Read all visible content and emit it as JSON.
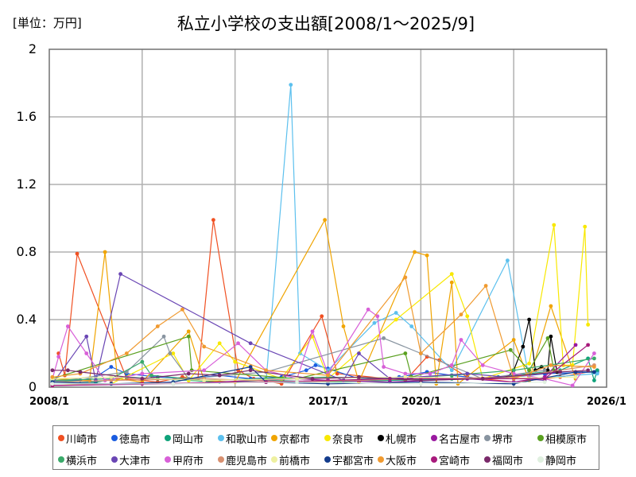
{
  "header": {
    "unit_label": "[単位：万円]",
    "title": "私立小学校の支出額[2008/1～2025/9]"
  },
  "axes": {
    "y_ticks": [
      "2",
      "1.6",
      "1.2",
      "0.8",
      "0.4",
      "0"
    ],
    "x_ticks": [
      "2008/1",
      "2011/1",
      "2014/1",
      "2017/1",
      "2020/1",
      "2023/1",
      "2026/1"
    ]
  },
  "legend": [
    {
      "name": "川崎市",
      "color": "#f05022"
    },
    {
      "name": "徳島市",
      "color": "#1a5ce0"
    },
    {
      "name": "岡山市",
      "color": "#0fa27a"
    },
    {
      "name": "和歌山市",
      "color": "#5cc0ee"
    },
    {
      "name": "京都市",
      "color": "#f0a400"
    },
    {
      "name": "奈良市",
      "color": "#f8e800"
    },
    {
      "name": "札幌市",
      "color": "#000000"
    },
    {
      "name": "名古屋市",
      "color": "#9a1aa0"
    },
    {
      "name": "堺市",
      "color": "#8894a0"
    },
    {
      "name": "相模原市",
      "color": "#5aa020"
    },
    {
      "name": "横浜市",
      "color": "#3aaa6a"
    },
    {
      "name": "大津市",
      "color": "#6a46b4"
    },
    {
      "name": "甲府市",
      "color": "#d860d8"
    },
    {
      "name": "鹿児島市",
      "color": "#d89070"
    },
    {
      "name": "前橋市",
      "color": "#eef0a0"
    },
    {
      "name": "宇都宮市",
      "color": "#143c8c"
    },
    {
      "name": "大阪市",
      "color": "#f09a30"
    },
    {
      "name": "宮崎市",
      "color": "#a81a7c"
    },
    {
      "name": "福岡市",
      "color": "#7a2a6a"
    },
    {
      "name": "静岡市",
      "color": "#e0f0e0"
    }
  ],
  "chart_data": {
    "type": "line",
    "title": "私立小学校の支出額[2008/1～2025/9]",
    "xlabel": "",
    "ylabel": "[単位：万円]",
    "ylim": [
      0,
      2
    ],
    "xlim": [
      "2008/1",
      "2026/1"
    ],
    "grid": true,
    "legend_position": "bottom",
    "x_tick_labels": [
      "2008/1",
      "2011/1",
      "2014/1",
      "2017/1",
      "2020/1",
      "2023/1",
      "2026/1"
    ],
    "y_tick_labels": [
      "0",
      "0.4",
      "0.8",
      "1.2",
      "1.6",
      "2"
    ],
    "series": [
      {
        "name": "川崎市",
        "points": [
          [
            2008.3,
            0.2
          ],
          [
            2008.5,
            0.07
          ],
          [
            2008.9,
            0.79
          ],
          [
            2010.5,
            0.05
          ],
          [
            2011.5,
            0.03
          ],
          [
            2012.3,
            0.06
          ],
          [
            2012.8,
            0.05
          ],
          [
            2013.3,
            0.99
          ],
          [
            2014.1,
            0.1
          ],
          [
            2014.6,
            0.05
          ],
          [
            2015.5,
            0.02
          ],
          [
            2016.8,
            0.42
          ],
          [
            2017.3,
            0.08
          ],
          [
            2019.5,
            0.04
          ],
          [
            2020.2,
            0.18
          ],
          [
            2020.6,
            0.16
          ],
          [
            2021.5,
            0.06
          ],
          [
            2023.0,
            0.03
          ],
          [
            2024.5,
            0.06
          ],
          [
            2025.7,
            0.1
          ]
        ]
      },
      {
        "name": "徳島市",
        "points": [
          [
            2008.1,
            0.03
          ],
          [
            2009.0,
            0.04
          ],
          [
            2009.5,
            0.06
          ],
          [
            2010.0,
            0.12
          ],
          [
            2010.5,
            0.08
          ],
          [
            2011.5,
            0.06
          ],
          [
            2012.5,
            0.05
          ],
          [
            2013.5,
            0.07
          ],
          [
            2014.5,
            0.05
          ],
          [
            2015.5,
            0.06
          ],
          [
            2016.3,
            0.1
          ],
          [
            2016.6,
            0.13
          ],
          [
            2017.0,
            0.11
          ],
          [
            2018.0,
            0.05
          ],
          [
            2019.3,
            0.06
          ],
          [
            2020.2,
            0.09
          ],
          [
            2021.0,
            0.07
          ],
          [
            2022.0,
            0.05
          ],
          [
            2023.0,
            0.06
          ],
          [
            2024.0,
            0.08
          ],
          [
            2025.7,
            0.09
          ]
        ]
      },
      {
        "name": "岡山市",
        "points": [
          [
            2008.1,
            0.04
          ],
          [
            2009.5,
            0.03
          ],
          [
            2010.5,
            0.06
          ],
          [
            2011.5,
            0.05
          ],
          [
            2012.5,
            0.04
          ],
          [
            2013.5,
            0.03
          ],
          [
            2015.0,
            0.04
          ],
          [
            2017.0,
            0.03
          ],
          [
            2019.0,
            0.04
          ],
          [
            2021.0,
            0.05
          ],
          [
            2022.5,
            0.06
          ],
          [
            2023.5,
            0.08
          ],
          [
            2024.5,
            0.1
          ],
          [
            2025.4,
            0.17
          ],
          [
            2025.6,
            0.04
          ],
          [
            2025.7,
            0.1
          ]
        ]
      },
      {
        "name": "和歌山市",
        "points": [
          [
            2008.1,
            0.02
          ],
          [
            2012.0,
            0.02
          ],
          [
            2015.0,
            0.03
          ],
          [
            2015.8,
            1.79
          ],
          [
            2016.1,
            0.2
          ],
          [
            2017.0,
            0.1
          ],
          [
            2018.5,
            0.38
          ],
          [
            2019.2,
            0.44
          ],
          [
            2019.7,
            0.36
          ],
          [
            2021.0,
            0.1
          ],
          [
            2022.8,
            0.75
          ],
          [
            2023.5,
            0.05
          ],
          [
            2025.7,
            0.08
          ]
        ]
      },
      {
        "name": "京都市",
        "points": [
          [
            2008.1,
            0.05
          ],
          [
            2009.3,
            0.04
          ],
          [
            2009.8,
            0.8
          ],
          [
            2010.2,
            0.05
          ],
          [
            2011.0,
            0.03
          ],
          [
            2012.5,
            0.33
          ],
          [
            2013.0,
            0.04
          ],
          [
            2014.0,
            0.03
          ],
          [
            2016.9,
            0.99
          ],
          [
            2017.5,
            0.36
          ],
          [
            2018.0,
            0.03
          ],
          [
            2019.8,
            0.8
          ],
          [
            2020.2,
            0.78
          ],
          [
            2020.5,
            0.02
          ],
          [
            2021.0,
            0.62
          ],
          [
            2021.2,
            0.02
          ],
          [
            2023.0,
            0.28
          ],
          [
            2023.5,
            0.04
          ],
          [
            2024.2,
            0.48
          ],
          [
            2025.0,
            0.05
          ]
        ]
      },
      {
        "name": "奈良市",
        "points": [
          [
            2008.1,
            0.01
          ],
          [
            2010.0,
            0.02
          ],
          [
            2012.0,
            0.2
          ],
          [
            2012.5,
            0.04
          ],
          [
            2013.5,
            0.26
          ],
          [
            2014.0,
            0.15
          ],
          [
            2015.5,
            0.05
          ],
          [
            2016.5,
            0.3
          ],
          [
            2017.0,
            0.05
          ],
          [
            2019.2,
            0.4
          ],
          [
            2021.0,
            0.67
          ],
          [
            2021.5,
            0.42
          ],
          [
            2022.0,
            0.05
          ],
          [
            2023.5,
            0.14
          ],
          [
            2024.3,
            0.96
          ],
          [
            2024.6,
            0.13
          ],
          [
            2024.9,
            0.13
          ],
          [
            2025.3,
            0.95
          ],
          [
            2025.4,
            0.37
          ]
        ]
      },
      {
        "name": "札幌市",
        "points": [
          [
            2022.8,
            0.06
          ],
          [
            2023.0,
            0.1
          ],
          [
            2023.3,
            0.24
          ],
          [
            2023.5,
            0.4
          ],
          [
            2023.7,
            0.1
          ],
          [
            2023.9,
            0.12
          ],
          [
            2024.1,
            0.1
          ],
          [
            2024.2,
            0.3
          ],
          [
            2024.4,
            0.09
          ]
        ]
      },
      {
        "name": "名古屋市",
        "points": [
          [
            2008.1,
            0.01
          ],
          [
            2012.0,
            0.02
          ],
          [
            2016.0,
            0.05
          ],
          [
            2017.0,
            0.04
          ],
          [
            2019.0,
            0.03
          ],
          [
            2021.5,
            0.05
          ],
          [
            2023.0,
            0.03
          ],
          [
            2024.0,
            0.06
          ],
          [
            2025.0,
            0.25
          ]
        ]
      },
      {
        "name": "堺市",
        "points": [
          [
            2008.1,
            0.03
          ],
          [
            2010.5,
            0.09
          ],
          [
            2011.7,
            0.3
          ],
          [
            2011.9,
            0.2
          ],
          [
            2012.5,
            0.05
          ],
          [
            2015.0,
            0.09
          ],
          [
            2018.8,
            0.29
          ],
          [
            2020.0,
            0.2
          ],
          [
            2022.0,
            0.05
          ],
          [
            2024.0,
            0.1
          ]
        ]
      },
      {
        "name": "相模原市",
        "points": [
          [
            2008.1,
            0.05
          ],
          [
            2012.5,
            0.3
          ],
          [
            2012.6,
            0.1
          ],
          [
            2016.0,
            0.05
          ],
          [
            2019.5,
            0.2
          ],
          [
            2019.7,
            0.06
          ],
          [
            2022.9,
            0.22
          ],
          [
            2023.5,
            0.1
          ],
          [
            2024.1,
            0.29
          ],
          [
            2024.3,
            0.1
          ]
        ]
      },
      {
        "name": "横浜市",
        "points": [
          [
            2008.1,
            0.04
          ],
          [
            2010.0,
            0.05
          ],
          [
            2011.0,
            0.15
          ],
          [
            2011.3,
            0.07
          ],
          [
            2013.0,
            0.04
          ],
          [
            2015.0,
            0.05
          ],
          [
            2017.0,
            0.06
          ],
          [
            2019.0,
            0.05
          ],
          [
            2021.0,
            0.07
          ],
          [
            2023.0,
            0.1
          ],
          [
            2025.6,
            0.17
          ]
        ]
      },
      {
        "name": "大津市",
        "points": [
          [
            2008.1,
            0.02
          ],
          [
            2009.2,
            0.3
          ],
          [
            2009.5,
            0.04
          ],
          [
            2010.3,
            0.67
          ],
          [
            2014.5,
            0.26
          ],
          [
            2017.5,
            0.04
          ],
          [
            2018.0,
            0.2
          ],
          [
            2019.0,
            0.05
          ],
          [
            2021.5,
            0.08
          ],
          [
            2024.0,
            0.04
          ]
        ]
      },
      {
        "name": "甲府市",
        "points": [
          [
            2008.1,
            0.05
          ],
          [
            2008.3,
            0.18
          ],
          [
            2008.6,
            0.36
          ],
          [
            2009.2,
            0.2
          ],
          [
            2009.8,
            0.04
          ],
          [
            2011.0,
            0.08
          ],
          [
            2013.0,
            0.1
          ],
          [
            2014.1,
            0.26
          ],
          [
            2015.0,
            0.1
          ],
          [
            2016.0,
            0.05
          ],
          [
            2016.5,
            0.33
          ],
          [
            2017.0,
            0.08
          ],
          [
            2018.3,
            0.46
          ],
          [
            2018.6,
            0.42
          ],
          [
            2018.8,
            0.12
          ],
          [
            2019.5,
            0.08
          ],
          [
            2020.3,
            0.08
          ],
          [
            2021.0,
            0.13
          ],
          [
            2021.3,
            0.28
          ],
          [
            2022.0,
            0.13
          ],
          [
            2023.0,
            0.08
          ],
          [
            2024.0,
            0.05
          ],
          [
            2024.9,
            0.01
          ],
          [
            2025.6,
            0.2
          ]
        ]
      },
      {
        "name": "鹿児島市",
        "points": [
          [
            2008.1,
            0.03
          ],
          [
            2010.0,
            0.04
          ],
          [
            2013.0,
            0.05
          ],
          [
            2016.0,
            0.03
          ],
          [
            2020.0,
            0.05
          ],
          [
            2023.0,
            0.06
          ],
          [
            2025.6,
            0.13
          ]
        ]
      },
      {
        "name": "前橋市",
        "points": [
          [
            2008.1,
            0.05
          ],
          [
            2010.0,
            0.06
          ],
          [
            2013.0,
            0.04
          ],
          [
            2016.0,
            0.05
          ],
          [
            2019.5,
            0.06
          ],
          [
            2022.0,
            0.05
          ],
          [
            2025.0,
            0.06
          ]
        ]
      },
      {
        "name": "宇都宮市",
        "points": [
          [
            2008.1,
            0.03
          ],
          [
            2010.0,
            0.02
          ],
          [
            2012.0,
            0.03
          ],
          [
            2014.5,
            0.12
          ],
          [
            2015.0,
            0.03
          ],
          [
            2017.0,
            0.02
          ],
          [
            2020.0,
            0.03
          ],
          [
            2023.0,
            0.02
          ],
          [
            2025.0,
            0.09
          ],
          [
            2025.6,
            0.09
          ]
        ]
      },
      {
        "name": "大阪市",
        "points": [
          [
            2008.1,
            0.06
          ],
          [
            2009.0,
            0.08
          ],
          [
            2010.5,
            0.2
          ],
          [
            2011.5,
            0.36
          ],
          [
            2012.3,
            0.46
          ],
          [
            2013.0,
            0.24
          ],
          [
            2015.0,
            0.1
          ],
          [
            2017.0,
            0.07
          ],
          [
            2019.5,
            0.65
          ],
          [
            2020.0,
            0.2
          ],
          [
            2021.3,
            0.43
          ],
          [
            2022.1,
            0.6
          ],
          [
            2023.0,
            0.05
          ],
          [
            2024.2,
            0.13
          ],
          [
            2025.6,
            0.12
          ]
        ]
      },
      {
        "name": "宮崎市",
        "points": [
          [
            2008.1,
            0.01
          ],
          [
            2011.0,
            0.02
          ],
          [
            2015.0,
            0.03
          ],
          [
            2019.0,
            0.05
          ],
          [
            2022.0,
            0.05
          ],
          [
            2024.0,
            0.05
          ],
          [
            2025.4,
            0.25
          ]
        ]
      },
      {
        "name": "福岡市",
        "points": [
          [
            2008.1,
            0.1
          ],
          [
            2008.6,
            0.1
          ],
          [
            2009.0,
            0.09
          ],
          [
            2011.0,
            0.05
          ],
          [
            2012.5,
            0.08
          ],
          [
            2013.5,
            0.07
          ],
          [
            2014.5,
            0.1
          ],
          [
            2016.5,
            0.05
          ],
          [
            2018.0,
            0.06
          ],
          [
            2020.0,
            0.04
          ],
          [
            2022.0,
            0.05
          ],
          [
            2024.5,
            0.09
          ],
          [
            2025.4,
            0.1
          ]
        ]
      },
      {
        "name": "静岡市",
        "points": [
          [
            2008.1,
            0.02
          ],
          [
            2012.0,
            0.02
          ],
          [
            2016.0,
            0.03
          ],
          [
            2020.0,
            0.02
          ],
          [
            2024.0,
            0.03
          ]
        ]
      }
    ]
  }
}
